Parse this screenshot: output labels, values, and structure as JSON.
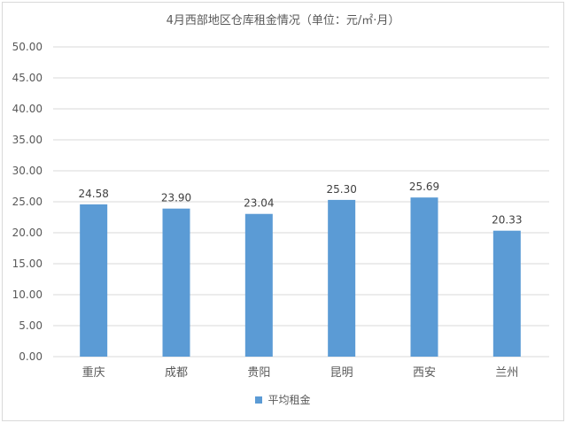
{
  "colors": {
    "bar": "#5b9bd5",
    "grid": "#d9d9d9",
    "text": "#595959"
  },
  "chart_data": {
    "type": "bar",
    "title": "4月西部地区仓库租金情况（单位：元/㎡·月）",
    "categories": [
      "重庆",
      "成都",
      "贵阳",
      "昆明",
      "西安",
      "兰州"
    ],
    "series": [
      {
        "name": "平均租金",
        "values": [
          24.58,
          23.9,
          23.04,
          25.3,
          25.69,
          20.33
        ]
      }
    ],
    "data_labels": [
      "24.58",
      "23.90",
      "23.04",
      "25.30",
      "25.69",
      "20.33"
    ],
    "y_ticks": [
      "0.00",
      "5.00",
      "10.00",
      "15.00",
      "20.00",
      "25.00",
      "30.00",
      "35.00",
      "40.00",
      "45.00",
      "50.00"
    ],
    "ylim": [
      0,
      50
    ],
    "grid": true,
    "legend_position": "bottom"
  }
}
